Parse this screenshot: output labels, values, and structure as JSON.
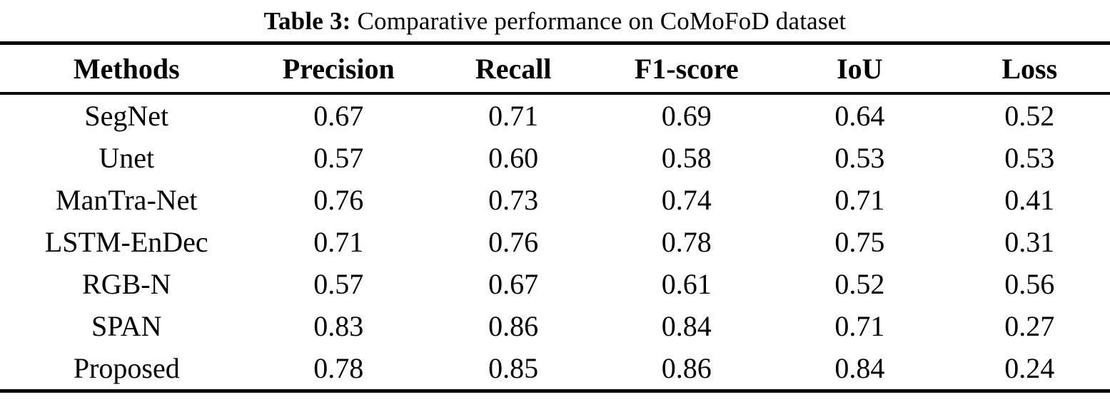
{
  "caption": {
    "label": "Table 3:",
    "text": "Comparative performance on CoMoFoD dataset"
  },
  "table": {
    "columns": [
      "Methods",
      "Precision",
      "Recall",
      "F1-score",
      "IoU",
      "Loss"
    ],
    "rows": [
      {
        "method": "SegNet",
        "values": [
          "0.67",
          "0.71",
          "0.69",
          "0.64",
          "0.52"
        ]
      },
      {
        "method": "Unet",
        "values": [
          "0.57",
          "0.60",
          "0.58",
          "0.53",
          "0.53"
        ]
      },
      {
        "method": "ManTra-Net",
        "values": [
          "0.76",
          "0.73",
          "0.74",
          "0.71",
          "0.41"
        ]
      },
      {
        "method": "LSTM-EnDec",
        "values": [
          "0.71",
          "0.76",
          "0.78",
          "0.75",
          "0.31"
        ]
      },
      {
        "method": "RGB-N",
        "values": [
          "0.57",
          "0.67",
          "0.61",
          "0.52",
          "0.56"
        ]
      },
      {
        "method": "SPAN",
        "values": [
          "0.83",
          "0.86",
          "0.84",
          "0.71",
          "0.27"
        ]
      },
      {
        "method": "Proposed",
        "values": [
          "0.78",
          "0.85",
          "0.86",
          "0.84",
          "0.24"
        ]
      }
    ]
  },
  "chart_data": {
    "type": "table",
    "title": "Table 3: Comparative performance on CoMoFoD dataset",
    "categories": [
      "Precision",
      "Recall",
      "F1-score",
      "IoU",
      "Loss"
    ],
    "series": [
      {
        "name": "SegNet",
        "values": [
          0.67,
          0.71,
          0.69,
          0.64,
          0.52
        ]
      },
      {
        "name": "Unet",
        "values": [
          0.57,
          0.6,
          0.58,
          0.53,
          0.53
        ]
      },
      {
        "name": "ManTra-Net",
        "values": [
          0.76,
          0.73,
          0.74,
          0.71,
          0.41
        ]
      },
      {
        "name": "LSTM-EnDec",
        "values": [
          0.71,
          0.76,
          0.78,
          0.75,
          0.31
        ]
      },
      {
        "name": "RGB-N",
        "values": [
          0.57,
          0.67,
          0.61,
          0.52,
          0.56
        ]
      },
      {
        "name": "SPAN",
        "values": [
          0.83,
          0.86,
          0.84,
          0.71,
          0.27
        ]
      },
      {
        "name": "Proposed",
        "values": [
          0.78,
          0.85,
          0.86,
          0.84,
          0.24
        ]
      }
    ],
    "colors": {
      "text": "#000000",
      "rule": "#0a0a0a",
      "background": "#ffffff"
    }
  }
}
